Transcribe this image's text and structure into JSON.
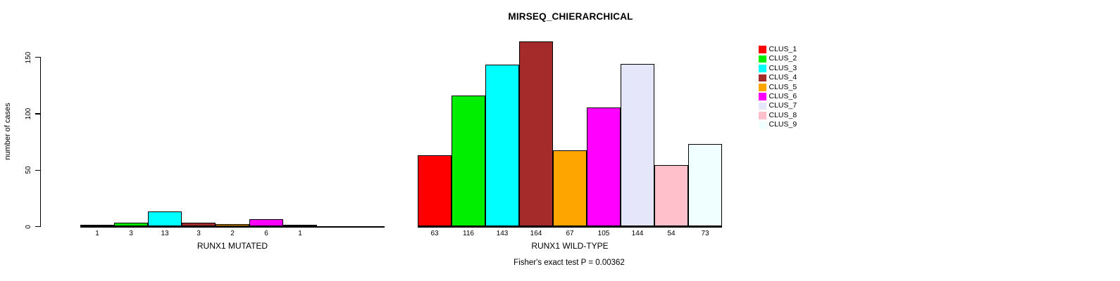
{
  "chart_data": {
    "type": "bar",
    "title": "MIRSEQ_CHIERARCHICAL",
    "ylabel": "number of cases",
    "yticks": [
      0,
      50,
      100,
      150
    ],
    "ylim": [
      0,
      164
    ],
    "grid": false,
    "legend_position": "right",
    "clusters": [
      {
        "name": "CLUS_1",
        "color": "#FF0000"
      },
      {
        "name": "CLUS_2",
        "color": "#00EE00"
      },
      {
        "name": "CLUS_3",
        "color": "#00FFFF"
      },
      {
        "name": "CLUS_4",
        "color": "#A52A2A"
      },
      {
        "name": "CLUS_5",
        "color": "#FFA500"
      },
      {
        "name": "CLUS_6",
        "color": "#FF00FF"
      },
      {
        "name": "CLUS_7",
        "color": "#E6E6FA"
      },
      {
        "name": "CLUS_8",
        "color": "#FFC0CB"
      },
      {
        "name": "CLUS_9",
        "color": "#F0FFFF"
      }
    ],
    "groups": [
      {
        "label": "RUNX1 MUTATED",
        "values": [
          1,
          3,
          13,
          3,
          2,
          6,
          1,
          0,
          0
        ]
      },
      {
        "label": "RUNX1 WILD-TYPE",
        "values": [
          63,
          116,
          143,
          164,
          67,
          105,
          144,
          54,
          73
        ]
      }
    ],
    "footnote": "Fisher's exact test P = 0.00362"
  }
}
